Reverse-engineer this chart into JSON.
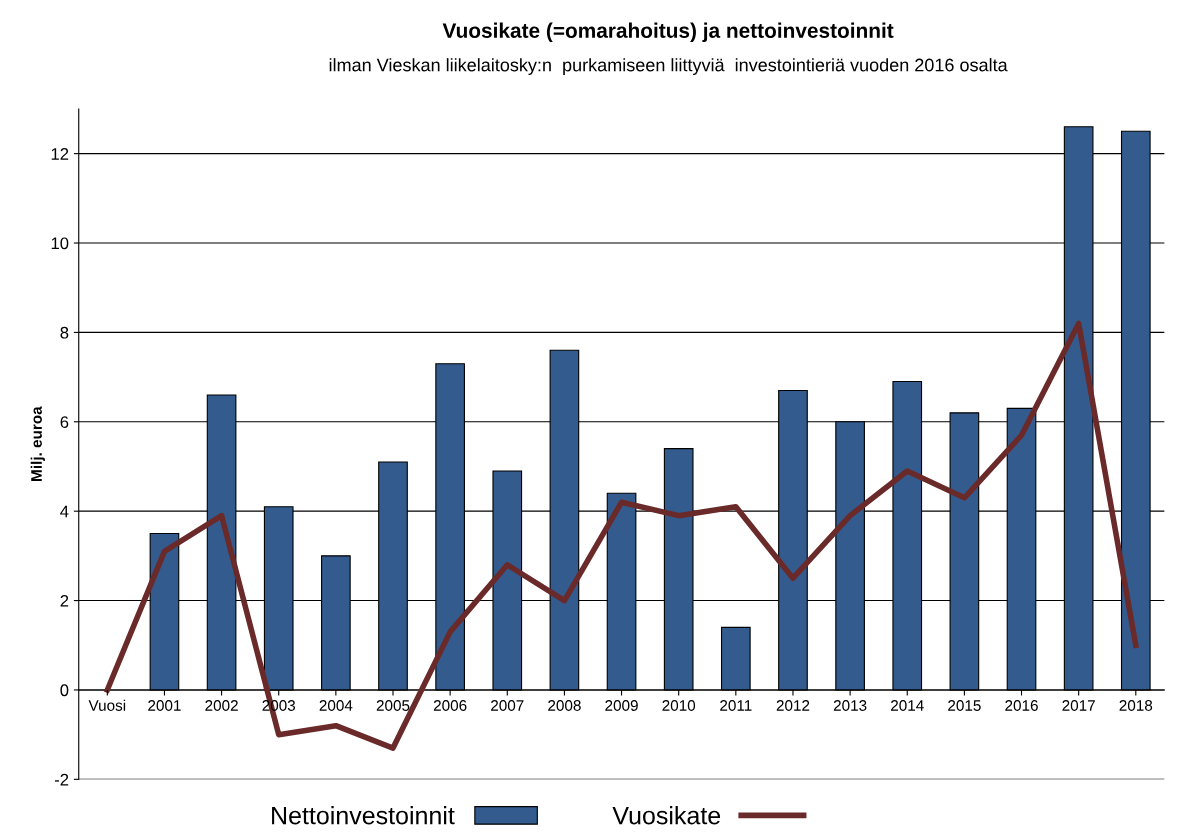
{
  "chart_data": {
    "type": "bar",
    "title": "Vuosikate (=omarahoitus) ja nettoinvestoinnit",
    "subtitle": "ilman Vieskan liikelaitosky:n  purkamiseen liittyviä  investointieriä vuoden 2016 osalta",
    "ylabel": "Milj. euroa",
    "categories": [
      "Vuosi",
      "2001",
      "2002",
      "2003",
      "2004",
      "2005",
      "2006",
      "2007",
      "2008",
      "2009",
      "2010",
      "2011",
      "2012",
      "2013",
      "2014",
      "2015",
      "2016",
      "2017",
      "2018"
    ],
    "series": [
      {
        "name": "Nettoinvestoinnit",
        "color": "#335b8e",
        "values": [
          null,
          3.5,
          6.6,
          4.1,
          3.0,
          5.1,
          7.3,
          4.9,
          7.6,
          4.4,
          5.4,
          1.4,
          6.7,
          6.0,
          6.9,
          6.2,
          6.3,
          12.6,
          12.5
        ]
      },
      {
        "name": "Vuosikate",
        "type": "line",
        "color": "#6b2a2a",
        "values": [
          0,
          3.1,
          3.9,
          -1.0,
          -0.8,
          -1.3,
          1.3,
          2.8,
          2.0,
          4.2,
          3.9,
          4.1,
          2.5,
          3.9,
          4.9,
          4.3,
          5.7,
          8.2,
          1.0
        ]
      }
    ],
    "ylim": [
      -2,
      13
    ],
    "yticks": [
      -2,
      0,
      2,
      4,
      6,
      8,
      10,
      12
    ],
    "grid": "y",
    "legend": "bottom",
    "marker": "none",
    "line_style": "solid"
  }
}
